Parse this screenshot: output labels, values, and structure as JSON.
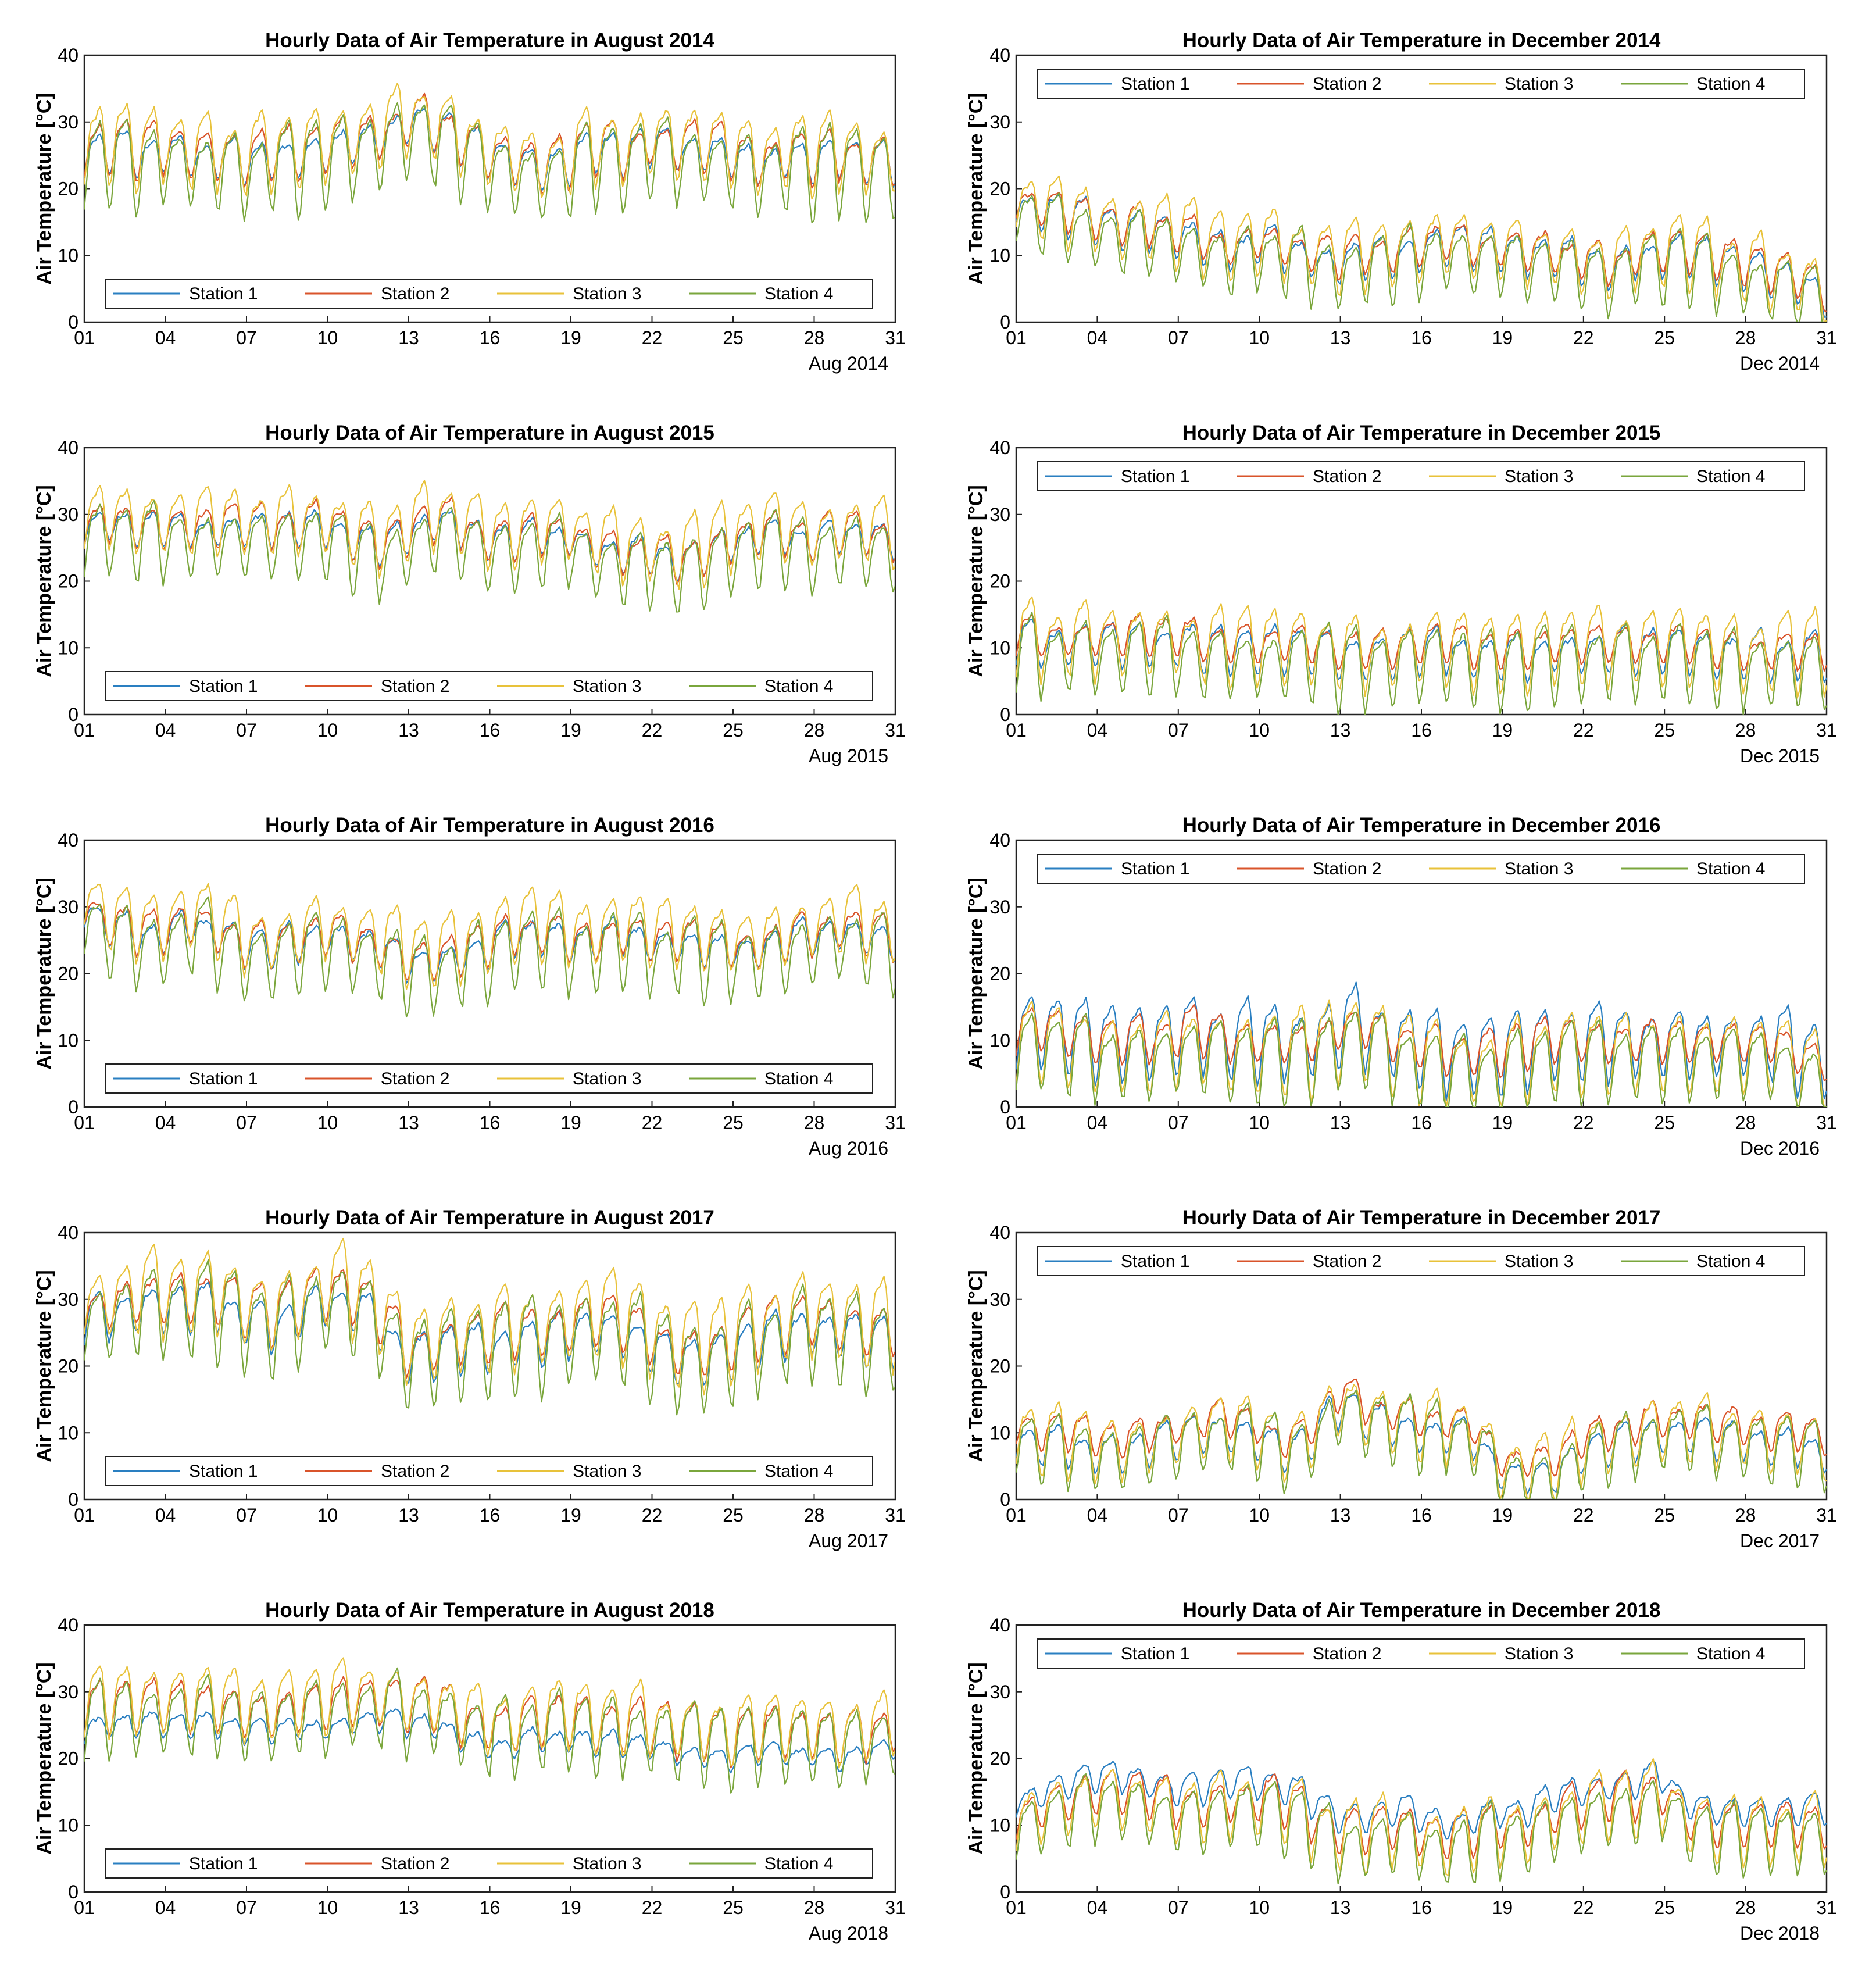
{
  "figure": {
    "station_labels": [
      "Station 1",
      "Station 2",
      "Station 3",
      "Station 4"
    ],
    "station_colors": [
      "#2a7fc1",
      "#d9542b",
      "#e8c23a",
      "#7aa63c"
    ],
    "ylabel": "Air Temperature [°C]",
    "yticks": [
      "0",
      "10",
      "20",
      "30",
      "40"
    ],
    "xticks": [
      "01",
      "04",
      "07",
      "10",
      "13",
      "16",
      "19",
      "22",
      "25",
      "28",
      "31"
    ]
  },
  "chart_data": [
    {
      "type": "line",
      "title": "Hourly Data of Air Temperature in August 2014",
      "xlabel": "Aug 2014",
      "ylabel": "Air Temperature [°C]",
      "ylim": [
        0,
        40
      ],
      "xlim": [
        1,
        31
      ],
      "legend": "bottom",
      "mean": [
        25,
        26,
        25,
        26,
        25,
        25,
        24,
        25,
        25,
        26,
        27,
        28,
        30,
        29,
        27,
        25,
        24,
        23,
        24,
        26,
        25,
        27,
        26,
        26,
        25,
        24,
        25,
        24,
        25,
        24,
        24
      ],
      "station_offset": [
        0,
        0.7,
        1.5,
        -1.2
      ],
      "station_amplitude": [
        2.6,
        3.3,
        5.0,
        5.5
      ]
    },
    {
      "type": "line",
      "title": "Hourly Data of Air Temperature in December 2014",
      "xlabel": "Dec 2014",
      "ylabel": "Air Temperature [°C]",
      "ylim": [
        0,
        40
      ],
      "xlim": [
        1,
        31
      ],
      "legend": "top",
      "mean": [
        18,
        17,
        16,
        15,
        14,
        14,
        13,
        12,
        11,
        12,
        11,
        10,
        9,
        10,
        10,
        11,
        12,
        11,
        11,
        10,
        10,
        9,
        8,
        10,
        10,
        10,
        9,
        8,
        7,
        6,
        4
      ],
      "station_offset": [
        0,
        0.7,
        1.0,
        -1.3
      ],
      "station_amplitude": [
        2.6,
        2.5,
        4.5,
        4.5
      ]
    },
    {
      "type": "line",
      "title": "Hourly Data of Air Temperature in August 2015",
      "xlabel": "Aug 2015",
      "ylabel": "Air Temperature [°C]",
      "ylim": [
        0,
        40
      ],
      "xlim": [
        1,
        31
      ],
      "legend": "bottom",
      "mean": [
        28,
        29,
        28,
        28,
        28,
        28,
        28,
        28,
        28,
        28,
        26,
        25,
        27,
        29,
        28,
        26,
        26,
        27,
        27,
        25,
        24,
        24,
        23,
        24,
        26,
        27,
        27,
        26,
        27,
        27,
        26
      ],
      "station_offset": [
        0,
        0.5,
        1.8,
        -1.5
      ],
      "station_amplitude": [
        2.2,
        2.8,
        4.5,
        5.0
      ]
    },
    {
      "type": "line",
      "title": "Hourly Data of Air Temperature in December 2015",
      "xlabel": "Dec 2015",
      "ylabel": "Air Temperature [°C]",
      "ylim": [
        0,
        40
      ],
      "xlim": [
        1,
        31
      ],
      "legend": "top",
      "mean": [
        11,
        11,
        11,
        11,
        11,
        11,
        11,
        10,
        10,
        10,
        10,
        10,
        9,
        9,
        9,
        10,
        10,
        9,
        9,
        9,
        10,
        10,
        10,
        10,
        10,
        10,
        9,
        9,
        9,
        9,
        9
      ],
      "station_offset": [
        0,
        1.0,
        1.0,
        -1.5
      ],
      "station_amplitude": [
        3.0,
        2.5,
        5.0,
        5.0
      ]
    },
    {
      "type": "line",
      "title": "Hourly Data of Air Temperature in August 2016",
      "xlabel": "Aug 2016",
      "ylabel": "Air Temperature [°C]",
      "ylim": [
        0,
        40
      ],
      "xlim": [
        1,
        31
      ],
      "legend": "bottom",
      "mean": [
        30,
        27,
        26,
        26,
        28,
        26,
        24,
        24,
        25,
        26,
        25,
        24,
        22,
        22,
        23,
        24,
        26,
        26,
        25,
        25,
        26,
        25,
        25,
        24,
        24,
        24,
        25,
        26,
        27,
        26,
        25
      ],
      "station_offset": [
        0,
        0.5,
        2.0,
        -1.5
      ],
      "station_amplitude": [
        2.5,
        2.8,
        4.5,
        5.0
      ]
    },
    {
      "type": "line",
      "title": "Hourly Data of Air Temperature in December 2016",
      "xlabel": "Dec 2016",
      "ylabel": "Air Temperature [°C]",
      "ylim": [
        0,
        40
      ],
      "xlim": [
        1,
        31
      ],
      "legend": "top",
      "mean": [
        10,
        11,
        10,
        9,
        9,
        9,
        10,
        10,
        9,
        9,
        9,
        9,
        11,
        11,
        9,
        8,
        7,
        7,
        7,
        8,
        9,
        9,
        9,
        9,
        9,
        9,
        9,
        9,
        9,
        7,
        6
      ],
      "station_offset": [
        1.5,
        1.5,
        0,
        -1.5
      ],
      "station_amplitude": [
        5.0,
        3.0,
        5.5,
        5.0
      ]
    },
    {
      "type": "line",
      "title": "Hourly Data of Air Temperature in August 2017",
      "xlabel": "Aug 2017",
      "ylabel": "Air Temperature [°C]",
      "ylim": [
        0,
        40
      ],
      "xlim": [
        1,
        31
      ],
      "legend": "bottom",
      "mean": [
        28,
        29,
        30,
        30,
        30,
        30,
        28,
        27,
        29,
        31,
        30,
        27,
        22,
        23,
        24,
        24,
        25,
        25,
        26,
        27,
        26,
        24,
        22,
        22,
        23,
        25,
        26,
        27,
        26,
        25,
        25
      ],
      "station_offset": [
        -1.0,
        0.8,
        2.0,
        -1.0
      ],
      "station_amplitude": [
        3.0,
        3.5,
        5.5,
        6.0
      ]
    },
    {
      "type": "line",
      "title": "Hourly Data of Air Temperature in December 2017",
      "xlabel": "Dec 2017",
      "ylabel": "Air Temperature [°C]",
      "ylim": [
        0,
        40
      ],
      "xlim": [
        1,
        31
      ],
      "legend": "top",
      "mean": [
        10,
        9,
        9,
        8,
        8,
        9,
        10,
        11,
        11,
        10,
        8,
        10,
        15,
        13,
        12,
        11,
        11,
        10,
        5,
        5,
        5,
        8,
        9,
        10,
        11,
        11,
        10,
        10,
        9,
        9,
        8
      ],
      "station_offset": [
        -0.8,
        1.2,
        0.5,
        -1.0
      ],
      "station_amplitude": [
        2.5,
        2.2,
        4.5,
        4.5
      ]
    },
    {
      "type": "line",
      "title": "Hourly Data of Air Temperature in August 2018",
      "xlabel": "Aug 2018",
      "ylabel": "Air Temperature [°C]",
      "ylim": [
        0,
        40
      ],
      "xlim": [
        1,
        31
      ],
      "legend": "bottom",
      "mean": [
        26,
        27,
        27,
        27,
        27,
        27,
        26,
        26,
        27,
        27,
        28,
        28,
        27,
        27,
        25,
        24,
        24,
        25,
        25,
        24,
        24,
        24,
        23,
        23,
        22,
        23,
        23,
        23,
        22,
        23,
        24
      ],
      "station_offset": [
        -2.0,
        1.5,
        2.5,
        0
      ],
      "station_amplitude": [
        1.5,
        3.5,
        4.5,
        5.0
      ]
    },
    {
      "type": "line",
      "title": "Hourly Data of Air Temperature in December 2018",
      "xlabel": "Dec 2018",
      "ylabel": "Air Temperature [°C]",
      "ylim": [
        0,
        40
      ],
      "xlim": [
        1,
        31
      ],
      "legend": "top",
      "mean": [
        11,
        13,
        14,
        15,
        15,
        14,
        13,
        13,
        14,
        14,
        13,
        11,
        9,
        9,
        10,
        9,
        8,
        9,
        10,
        10,
        12,
        13,
        14,
        14,
        15,
        11,
        10,
        10,
        10,
        10,
        10
      ],
      "station_offset": [
        2.5,
        0.5,
        0,
        -1.5
      ],
      "station_amplitude": [
        2.0,
        3.0,
        4.5,
        4.5
      ]
    }
  ]
}
